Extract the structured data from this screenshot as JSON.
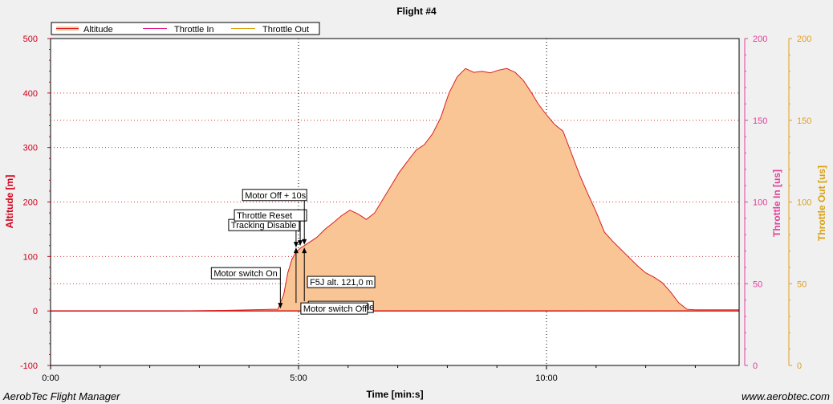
{
  "chart_data": {
    "type": "area",
    "title": "Flight #4",
    "xlabel": "Time [min:s]",
    "ylabel": "Altitude [m]",
    "y2label": "Throttle In [us]",
    "y3label": "Throttle Out [us]",
    "xlim": [
      0,
      833
    ],
    "ylim": [
      -100,
      500
    ],
    "y2lim": [
      0,
      200
    ],
    "y3lim": [
      0,
      200
    ],
    "x_ticks": [
      0,
      300,
      600
    ],
    "x_tick_labels": [
      "0:00",
      "5:00",
      "10:00"
    ],
    "y_ticks": [
      -100,
      0,
      100,
      200,
      300,
      400,
      500
    ],
    "y2_ticks": [
      0,
      50,
      100,
      150,
      200
    ],
    "y3_ticks": [
      0,
      50,
      100,
      150,
      200
    ],
    "grid": true,
    "legend_position": "top-left",
    "colors": {
      "altitude_line": "#d81f1f",
      "altitude_fill": "#f9c595",
      "throttle_in": "#e01a8e",
      "throttle_out": "#d9a010",
      "left_axis": "#d0001a",
      "right_axis_1": "#e0409a",
      "right_axis_2": "#e0a020"
    },
    "series": [
      {
        "name": "Altitude",
        "x": [
          0,
          150,
          210,
          270,
          275,
          282,
          287,
          292,
          297,
          302,
          307,
          312,
          322,
          332,
          342,
          352,
          362,
          372,
          382,
          392,
          402,
          412,
          422,
          432,
          442,
          452,
          462,
          472,
          482,
          492,
          502,
          512,
          522,
          532,
          542,
          552,
          562,
          572,
          582,
          590,
          600,
          610,
          620,
          630,
          640,
          650,
          660,
          670,
          680,
          690,
          700,
          710,
          720,
          730,
          740,
          750,
          760,
          770,
          780,
          790,
          800,
          815,
          833
        ],
        "values": [
          0,
          0,
          1,
          3,
          3,
          30,
          70,
          95,
          108,
          115,
          120,
          125,
          135,
          150,
          162,
          175,
          185,
          178,
          168,
          180,
          205,
          230,
          255,
          275,
          295,
          305,
          325,
          355,
          400,
          430,
          445,
          438,
          440,
          437,
          442,
          445,
          438,
          423,
          400,
          380,
          360,
          342,
          330,
          290,
          250,
          215,
          182,
          145,
          128,
          113,
          98,
          83,
          70,
          62,
          52,
          35,
          15,
          3,
          2,
          2,
          2,
          2,
          2
        ]
      },
      {
        "name": "Throttle In",
        "x": [],
        "values": []
      },
      {
        "name": "Throttle Out",
        "x": [],
        "values": []
      }
    ],
    "annotations": [
      {
        "text": "Motor switch On",
        "x": 278,
        "y": 3
      },
      {
        "text": "Tracking Disable",
        "x": 297,
        "y": 115
      },
      {
        "text": "Throttle Reset",
        "x": 302,
        "y": 118
      },
      {
        "text": "Motor Off + 10s",
        "x": 307,
        "y": 120
      },
      {
        "text": "F5J alt. 121,0 m",
        "x": 302,
        "y": 121
      },
      {
        "text": "Tracking Enable",
        "x": 307,
        "y": 118
      },
      {
        "text": "Motor switch Off",
        "x": 297,
        "y": 118
      }
    ]
  },
  "footer": {
    "left": "AerobTec Flight Manager",
    "right": "www.aerobtec.com"
  }
}
